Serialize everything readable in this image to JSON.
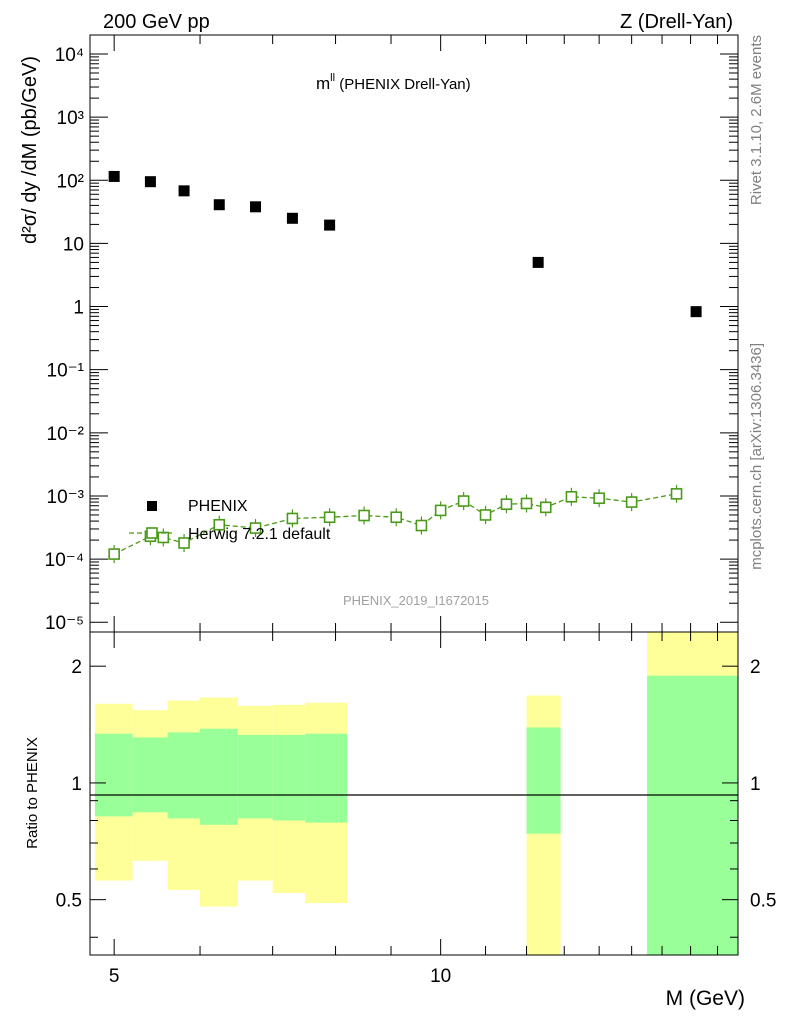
{
  "header": {
    "left": "200 GeV pp",
    "right": "Z (Drell-Yan)"
  },
  "side": {
    "top": "Rivet 3.1.10,  2.6M events",
    "bottom": "mcplots.cern.ch [arXiv:1306.3436]"
  },
  "watermark": "PHENIX_2019_I1672015",
  "chart_data": [
    {
      "type": "scatter",
      "title_main": "m",
      "title_sup": "ll",
      "title_rest": " (PHENIX Drell-Yan)",
      "ylabel": "d²σ/ dy /dM (pb/GeV)",
      "yscale": "log",
      "xscale": "log",
      "xlim": [
        4.75,
        18.8
      ],
      "ylim": [
        7e-06,
        20000
      ],
      "ytick_labels": [
        "10⁻⁵",
        "10⁻⁴",
        "10⁻³",
        "10⁻²",
        "10⁻¹",
        "1",
        "10",
        "10²",
        "10³",
        "10⁴"
      ],
      "legend": [
        "PHENIX",
        "Herwig 7.2.1 default"
      ],
      "legend_position": "lower-left",
      "series": [
        {
          "name": "PHENIX",
          "color": "#000000",
          "marker": "filled-square",
          "x": [
            5.0,
            5.4,
            5.8,
            6.25,
            6.75,
            7.3,
            7.9,
            12.3,
            17.2
          ],
          "y": [
            115,
            95,
            68,
            41,
            38,
            25,
            19.5,
            5.0,
            0.83
          ]
        },
        {
          "name": "Herwig 7.2.1 default",
          "color": "#4a9a1a",
          "marker": "open-square",
          "line": "dashed",
          "x": [
            5.0,
            5.4,
            5.55,
            5.8,
            6.25,
            6.75,
            7.3,
            7.9,
            8.5,
            9.1,
            9.6,
            10.0,
            10.5,
            11.0,
            11.5,
            12.0,
            12.5,
            13.2,
            14.0,
            15.0,
            16.5
          ],
          "y": [
            0.00012,
            0.00023,
            0.00022,
            0.00018,
            0.00035,
            0.00031,
            0.00044,
            0.00046,
            0.00049,
            0.00046,
            0.00034,
            0.00059,
            0.00083,
            0.0005,
            0.00074,
            0.00076,
            0.00066,
            0.00097,
            0.00092,
            0.0008,
            0.00108
          ]
        }
      ]
    },
    {
      "type": "area",
      "ylabel": "Ratio to PHENIX",
      "xlabel": "M (GeV)",
      "xlim": [
        4.75,
        18.8
      ],
      "ylim": [
        0.36,
        2.45
      ],
      "yticks": [
        0.5,
        1,
        2
      ],
      "ytick_labels": [
        "0.5",
        "1",
        "2"
      ],
      "xticks": [
        5,
        10
      ],
      "xtick_labels": [
        "5",
        "10"
      ],
      "reference_line": 1,
      "bands": [
        {
          "x0": 4.8,
          "x1": 5.2,
          "yellow": [
            0.56,
            1.6
          ],
          "green": [
            0.82,
            1.34
          ]
        },
        {
          "x0": 5.2,
          "x1": 5.6,
          "yellow": [
            0.63,
            1.54
          ],
          "green": [
            0.84,
            1.31
          ]
        },
        {
          "x0": 5.6,
          "x1": 6.0,
          "yellow": [
            0.53,
            1.63
          ],
          "green": [
            0.81,
            1.35
          ]
        },
        {
          "x0": 6.0,
          "x1": 6.5,
          "yellow": [
            0.48,
            1.66
          ],
          "green": [
            0.78,
            1.38
          ]
        },
        {
          "x0": 6.5,
          "x1": 7.0,
          "yellow": [
            0.56,
            1.58
          ],
          "green": [
            0.81,
            1.33
          ]
        },
        {
          "x0": 7.0,
          "x1": 7.5,
          "yellow": [
            0.52,
            1.59
          ],
          "green": [
            0.8,
            1.33
          ]
        },
        {
          "x0": 7.5,
          "x1": 8.2,
          "yellow": [
            0.49,
            1.61
          ],
          "green": [
            0.79,
            1.34
          ]
        },
        {
          "x0": 12.0,
          "x1": 12.9,
          "yellow": [
            0.36,
            1.68
          ],
          "green": [
            0.74,
            1.39
          ]
        },
        {
          "x0": 15.5,
          "x1": 18.8,
          "yellow": [
            0.36,
            2.45
          ],
          "green": [
            0.36,
            1.89
          ]
        }
      ],
      "band_colors": {
        "yellow": "#ffff99",
        "green": "#99ff99"
      }
    }
  ]
}
